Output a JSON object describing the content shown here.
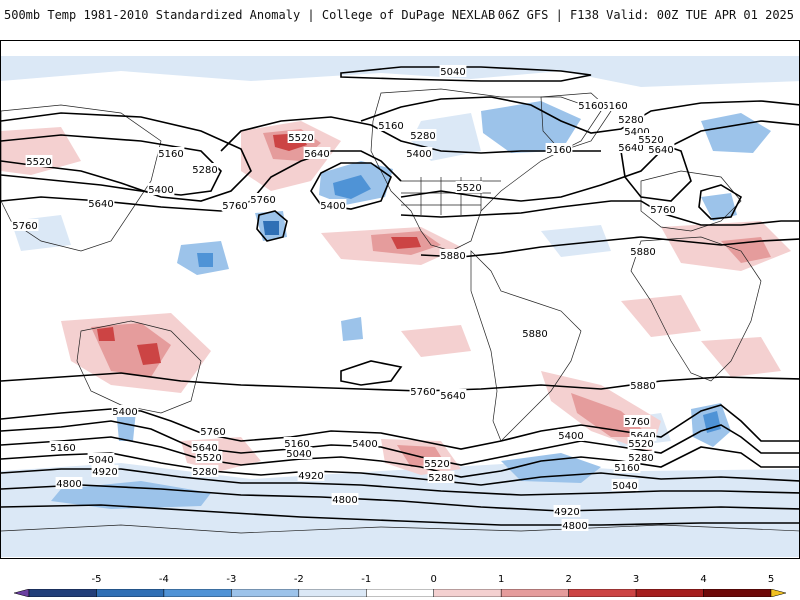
{
  "header": {
    "title_left": "500mb Temp 1981-2010 Standardized Anomaly | College of DuPage NEXLAB",
    "title_right": "06Z GFS | F138 Valid: 00Z TUE APR 01 2025"
  },
  "colorbar": {
    "ticks": [
      "-5",
      "-4",
      "-3",
      "-2",
      "-1",
      "0",
      "1",
      "2",
      "3",
      "4",
      "5"
    ],
    "colors": [
      "#6a3fa0",
      "#223f7a",
      "#2f6fb5",
      "#4f93d6",
      "#9cc3ea",
      "#dbe8f6",
      "#ffffff",
      "#f4d0d0",
      "#e59c9c",
      "#cc4444",
      "#a61f1f",
      "#6e0a0a",
      "#f0c020"
    ]
  },
  "contour_labels": [
    {
      "id": "c1",
      "text": "5040"
    },
    {
      "id": "c2",
      "text": "5160"
    },
    {
      "id": "c3",
      "text": "5520"
    },
    {
      "id": "c4",
      "text": "5160"
    },
    {
      "id": "c5",
      "text": "5520"
    },
    {
      "id": "c6",
      "text": "5640"
    },
    {
      "id": "c7",
      "text": "5280"
    },
    {
      "id": "c8",
      "text": "5400"
    },
    {
      "id": "c9",
      "text": "5160"
    },
    {
      "id": "c10",
      "text": "5280"
    },
    {
      "id": "c11",
      "text": "5400"
    },
    {
      "id": "c12",
      "text": "5640"
    },
    {
      "id": "c13",
      "text": "5760"
    },
    {
      "id": "c14",
      "text": "5760"
    },
    {
      "id": "c15",
      "text": "5400"
    },
    {
      "id": "c16",
      "text": "5520"
    },
    {
      "id": "c17",
      "text": "5760"
    },
    {
      "id": "c18",
      "text": "5640"
    },
    {
      "id": "c19",
      "text": "5880"
    },
    {
      "id": "c20",
      "text": "5160"
    },
    {
      "id": "c21",
      "text": "5160"
    },
    {
      "id": "c22",
      "text": "5280"
    },
    {
      "id": "c23",
      "text": "5400"
    },
    {
      "id": "c24",
      "text": "5520"
    },
    {
      "id": "c25",
      "text": "5640"
    },
    {
      "id": "c26",
      "text": "5760"
    },
    {
      "id": "c27",
      "text": "5880"
    },
    {
      "id": "c28",
      "text": "5880"
    },
    {
      "id": "c29",
      "text": "5880"
    },
    {
      "id": "c30",
      "text": "5760"
    },
    {
      "id": "c31",
      "text": "5640"
    },
    {
      "id": "c32",
      "text": "5400"
    },
    {
      "id": "c33",
      "text": "5760"
    },
    {
      "id": "c34",
      "text": "5640"
    },
    {
      "id": "c35",
      "text": "5520"
    },
    {
      "id": "c36",
      "text": "5280"
    },
    {
      "id": "c37",
      "text": "5160"
    },
    {
      "id": "c38",
      "text": "5040"
    },
    {
      "id": "c39",
      "text": "4920"
    },
    {
      "id": "c40",
      "text": "5160"
    },
    {
      "id": "c41",
      "text": "5040"
    },
    {
      "id": "c42",
      "text": "4920"
    },
    {
      "id": "c43",
      "text": "5400"
    },
    {
      "id": "c44",
      "text": "5520"
    },
    {
      "id": "c45",
      "text": "5280"
    },
    {
      "id": "c46",
      "text": "4800"
    },
    {
      "id": "c47",
      "text": "4800"
    },
    {
      "id": "c48",
      "text": "4920"
    },
    {
      "id": "c49",
      "text": "4800"
    },
    {
      "id": "c50",
      "text": "5400"
    },
    {
      "id": "c51",
      "text": "5760"
    },
    {
      "id": "c52",
      "text": "5640"
    },
    {
      "id": "c53",
      "text": "5520"
    },
    {
      "id": "c54",
      "text": "5280"
    },
    {
      "id": "c55",
      "text": "5160"
    },
    {
      "id": "c56",
      "text": "5040"
    }
  ]
}
